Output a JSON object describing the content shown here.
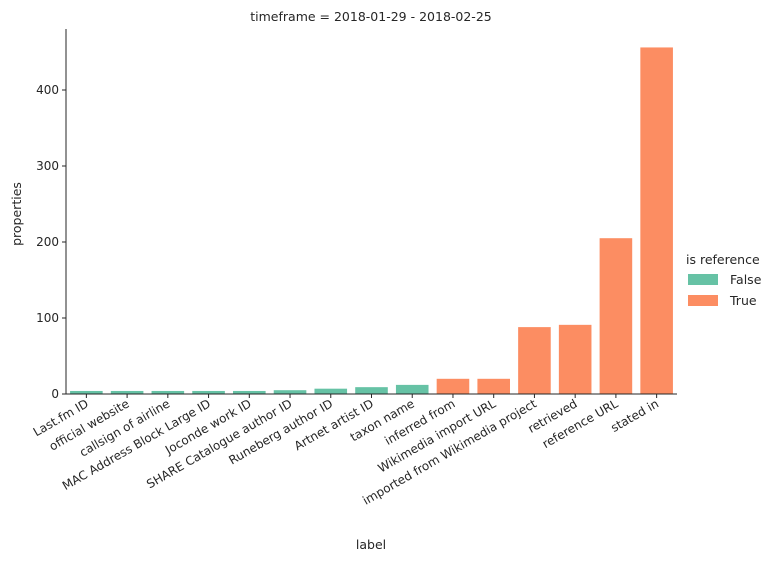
{
  "chart_data": {
    "type": "bar",
    "title": "timeframe = 2018-01-29 - 2018-02-25",
    "xlabel": "label",
    "ylabel": "properties",
    "ylim": [
      0,
      480
    ],
    "yticks": [
      0,
      100,
      200,
      300,
      400
    ],
    "categories": [
      "Last.fm ID",
      "official website",
      "callsign of airline",
      "MAC Address Block Large ID",
      "Joconde work ID",
      "SHARE Catalogue author ID",
      "Runeberg author ID",
      "Artnet artist ID",
      "taxon name",
      "inferred from",
      "Wikimedia import URL",
      "imported from Wikimedia project",
      "retrieved",
      "reference URL",
      "stated in"
    ],
    "values": [
      4,
      4,
      4,
      4,
      4,
      5,
      7,
      9,
      12,
      20,
      20,
      88,
      91,
      205,
      456
    ],
    "is_reference": [
      false,
      false,
      false,
      false,
      false,
      false,
      false,
      false,
      false,
      true,
      true,
      true,
      true,
      true,
      true
    ],
    "legend": {
      "title": "is reference",
      "placement": "right",
      "entries": [
        {
          "label": "False",
          "color": "#66c2a5"
        },
        {
          "label": "True",
          "color": "#fc8d62"
        }
      ]
    },
    "colors": {
      "false": "#66c2a5",
      "true": "#fc8d62",
      "axis": "#262626"
    }
  }
}
